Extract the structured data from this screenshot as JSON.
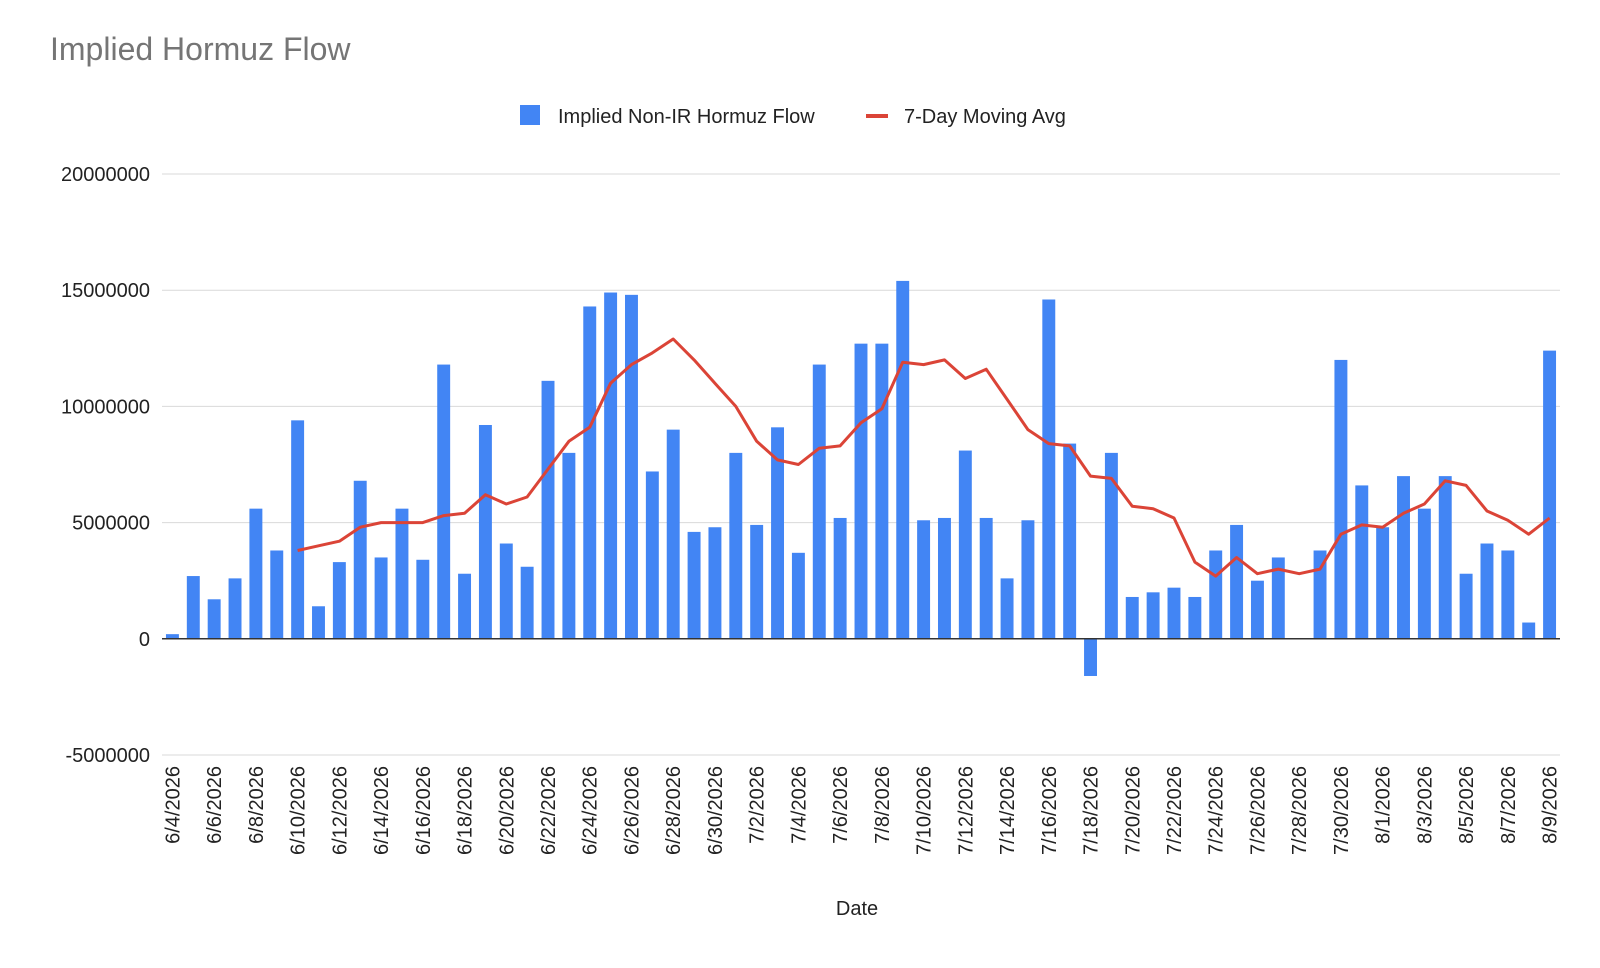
{
  "chart_data": {
    "type": "bar",
    "title": "Implied Hormuz Flow",
    "xlabel": "Date",
    "ylabel": "",
    "ylim": [
      -5000000,
      20000000
    ],
    "yticks": [
      20000000,
      15000000,
      10000000,
      5000000,
      0,
      -5000000
    ],
    "grid": true,
    "legend_position": "top",
    "categories": [
      "6/4/2026",
      "6/5/2026",
      "6/6/2026",
      "6/7/2026",
      "6/8/2026",
      "6/9/2026",
      "6/10/2026",
      "6/11/2026",
      "6/12/2026",
      "6/13/2026",
      "6/14/2026",
      "6/15/2026",
      "6/16/2026",
      "6/17/2026",
      "6/18/2026",
      "6/19/2026",
      "6/20/2026",
      "6/21/2026",
      "6/22/2026",
      "6/23/2026",
      "6/24/2026",
      "6/25/2026",
      "6/26/2026",
      "6/27/2026",
      "6/28/2026",
      "6/29/2026",
      "6/30/2026",
      "7/1/2026",
      "7/2/2026",
      "7/3/2026",
      "7/4/2026",
      "7/5/2026",
      "7/6/2026",
      "7/7/2026",
      "7/8/2026",
      "7/9/2026",
      "7/10/2026",
      "7/11/2026",
      "7/12/2026",
      "7/13/2026",
      "7/14/2026",
      "7/15/2026",
      "7/16/2026",
      "7/17/2026",
      "7/18/2026",
      "7/19/2026",
      "7/20/2026",
      "7/21/2026",
      "7/22/2026",
      "7/23/2026",
      "7/24/2026",
      "7/25/2026",
      "7/26/2026",
      "7/27/2026",
      "7/28/2026",
      "7/29/2026",
      "7/30/2026",
      "7/31/2026",
      "8/1/2026",
      "8/2/2026",
      "8/3/2026",
      "8/4/2026",
      "8/5/2026",
      "8/6/2026",
      "8/7/2026",
      "8/8/2026",
      "8/9/2026"
    ],
    "tick_labels": [
      "6/4/2026",
      "6/6/2026",
      "6/8/2026",
      "6/10/2026",
      "6/12/2026",
      "6/14/2026",
      "6/16/2026",
      "6/18/2026",
      "6/20/2026",
      "6/22/2026",
      "6/24/2026",
      "6/26/2026",
      "6/28/2026",
      "6/30/2026",
      "7/2/2026",
      "7/4/2026",
      "7/6/2026",
      "7/8/2026",
      "7/10/2026",
      "7/12/2026",
      "7/14/2026",
      "7/16/2026",
      "7/18/2026",
      "7/20/2026",
      "7/22/2026",
      "7/24/2026",
      "7/26/2026",
      "7/28/2026",
      "7/30/2026",
      "8/1/2026",
      "8/3/2026",
      "8/5/2026",
      "8/7/2026",
      "8/9/2026"
    ],
    "series": [
      {
        "name": "Implied Non-IR Hormuz Flow",
        "type": "bar",
        "color": "#4285f4",
        "values": [
          200000,
          2700000,
          1700000,
          2600000,
          5600000,
          3800000,
          9400000,
          1400000,
          3300000,
          6800000,
          3500000,
          5600000,
          3400000,
          11800000,
          2800000,
          9200000,
          4100000,
          3100000,
          11100000,
          8000000,
          14300000,
          14900000,
          14800000,
          7200000,
          9000000,
          4600000,
          4800000,
          8000000,
          4900000,
          9100000,
          3700000,
          11800000,
          5200000,
          12700000,
          12700000,
          15400000,
          5100000,
          5200000,
          8100000,
          5200000,
          2600000,
          5100000,
          14600000,
          8400000,
          -1600000,
          8000000,
          1800000,
          2000000,
          2200000,
          1800000,
          3800000,
          4900000,
          2500000,
          3500000,
          0,
          3800000,
          12000000,
          6600000,
          4800000,
          7000000,
          5600000,
          7000000,
          2800000,
          4100000,
          3800000,
          700000,
          12400000
        ]
      },
      {
        "name": "7-Day Moving Avg",
        "type": "line",
        "color": "#db4437",
        "values": [
          null,
          null,
          null,
          null,
          null,
          null,
          3800000,
          4000000,
          4200000,
          4800000,
          5000000,
          5000000,
          5000000,
          5300000,
          5400000,
          6200000,
          5800000,
          6100000,
          7300000,
          8500000,
          9100000,
          11000000,
          11800000,
          12300000,
          12900000,
          12000000,
          11000000,
          10000000,
          8500000,
          7700000,
          7500000,
          8200000,
          8300000,
          9300000,
          9900000,
          11900000,
          11800000,
          12000000,
          11200000,
          11600000,
          10300000,
          9000000,
          8400000,
          8300000,
          7000000,
          6900000,
          5700000,
          5600000,
          5200000,
          3300000,
          2700000,
          3500000,
          2800000,
          3000000,
          2800000,
          3000000,
          4500000,
          4900000,
          4800000,
          5400000,
          5800000,
          6800000,
          6600000,
          5500000,
          5100000,
          4500000,
          5200000
        ]
      }
    ]
  }
}
